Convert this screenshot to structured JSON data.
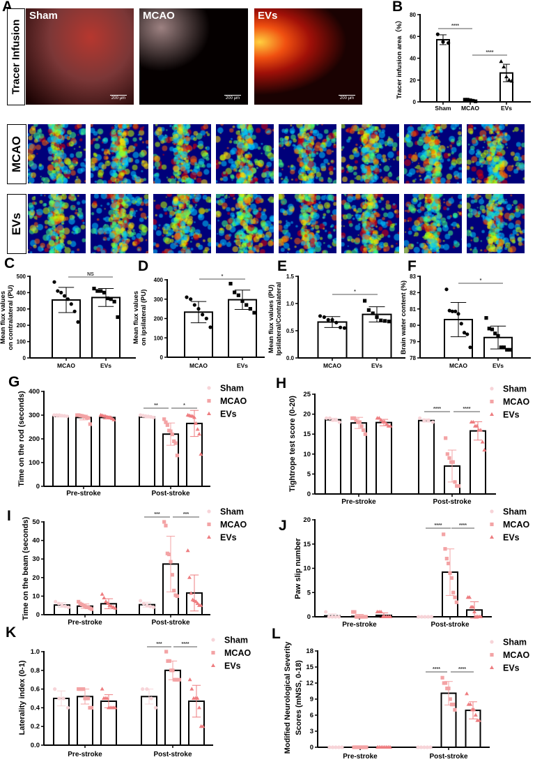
{
  "panel_a": {
    "letter": "A",
    "row_label": "Tracer Infusion",
    "images": [
      {
        "label": "Sham",
        "scale": "200 µm"
      },
      {
        "label": "MCAO",
        "scale": "200 µm"
      },
      {
        "label": "EVs",
        "scale": "200 µm"
      }
    ]
  },
  "laser_speckle": {
    "rows": [
      {
        "label": "MCAO",
        "count": 8
      },
      {
        "label": "EVs",
        "count": 8
      }
    ],
    "colormap": "jet"
  },
  "colors": {
    "Sham": "#f7d4d8",
    "MCAO": "#f3a3a5",
    "EVs": "#ee7d80",
    "black": "#000000"
  },
  "chart_data": [
    {
      "panel": "B",
      "type": "bar",
      "categories": [
        "Sham",
        "MCAO",
        "EVs"
      ],
      "ylabel": "Tracer infusion area（%）",
      "ylim": [
        0,
        80
      ],
      "yticks": [
        "0",
        "20",
        "40",
        "60",
        "80"
      ],
      "values": [
        57,
        1.5,
        26.5
      ],
      "sd": [
        4.5,
        0.8,
        8
      ],
      "markers": [
        "circle",
        "square",
        "triangle"
      ],
      "points": [
        [
          62,
          55,
          54
        ],
        [
          2,
          2,
          1.5,
          1,
          0.5
        ],
        [
          37,
          32,
          23,
          20,
          19
        ]
      ],
      "significance": [
        {
          "pair": [
            "Sham",
            "MCAO"
          ],
          "label": "****"
        },
        {
          "pair": [
            "MCAO",
            "EVs"
          ],
          "label": "****"
        }
      ]
    },
    {
      "panel": "C",
      "type": "bar",
      "categories": [
        "MCAO",
        "EVs"
      ],
      "ylabel": [
        "Mean flux values",
        "on contralateral (PU)"
      ],
      "ylim": [
        0,
        500
      ],
      "yticks": [
        "0",
        "100",
        "200",
        "300",
        "400",
        "500"
      ],
      "values": [
        355,
        370
      ],
      "sd": [
        77,
        55
      ],
      "markers": [
        "circle",
        "square"
      ],
      "points": [
        [
          465,
          410,
          400,
          380,
          360,
          330,
          285,
          220
        ],
        [
          425,
          410,
          410,
          400,
          365,
          360,
          345,
          250
        ]
      ],
      "significance": [
        {
          "pair": [
            "MCAO",
            "EVs"
          ],
          "label": "NS"
        }
      ]
    },
    {
      "panel": "D",
      "type": "bar",
      "categories": [
        "MCAO",
        "EVs"
      ],
      "ylabel": [
        "Mean flux values",
        "on ipsilateral (PU)"
      ],
      "ylim": [
        0,
        400
      ],
      "yticks": [
        "0",
        "100",
        "200",
        "300",
        "400"
      ],
      "values": [
        233,
        297
      ],
      "sd": [
        55,
        50
      ],
      "markers": [
        "circle",
        "square"
      ],
      "points": [
        [
          310,
          300,
          270,
          250,
          220,
          200,
          155
        ],
        [
          380,
          335,
          320,
          290,
          270,
          250,
          230
        ]
      ],
      "significance": [
        {
          "pair": [
            "MCAO",
            "EVs"
          ],
          "label": "*"
        }
      ]
    },
    {
      "panel": "E",
      "type": "bar",
      "categories": [
        "MCAO",
        "EVs"
      ],
      "ylabel": [
        "Mean flux values (PU)",
        "Ipsilateral/Contralateral"
      ],
      "ylim": [
        0,
        1.5
      ],
      "yticks": [
        "0.0",
        "0.5",
        "1.0",
        "1.5"
      ],
      "values": [
        0.66,
        0.8
      ],
      "sd": [
        0.1,
        0.14
      ],
      "markers": [
        "circle",
        "square"
      ],
      "points": [
        [
          0.77,
          0.75,
          0.7,
          0.7,
          0.65,
          0.56,
          0.55
        ],
        [
          1.05,
          0.88,
          0.82,
          0.75,
          0.69,
          0.68,
          0.67
        ]
      ],
      "significance": [
        {
          "pair": [
            "MCAO",
            "EVs"
          ],
          "label": "*"
        }
      ]
    },
    {
      "panel": "F",
      "type": "bar",
      "categories": [
        "MCAO",
        "EVs"
      ],
      "ylabel": "Brain water content (%)",
      "ylim": [
        78,
        83
      ],
      "yticks": [
        "78",
        "79",
        "80",
        "81",
        "82",
        "83"
      ],
      "values": [
        80.35,
        79.25
      ],
      "sd": [
        1.05,
        0.7
      ],
      "markers": [
        "circle",
        "square"
      ],
      "points": [
        [
          82.2,
          80.9,
          80.85,
          80.85,
          80.7,
          80.1,
          79.55,
          79.45,
          78.65
        ],
        [
          80.45,
          79.8,
          79.75,
          79.5,
          79.35,
          78.65,
          78.65,
          78.5,
          78.5
        ]
      ],
      "significance": [
        {
          "pair": [
            "MCAO",
            "EVs"
          ],
          "label": "*"
        }
      ]
    },
    {
      "panel": "G",
      "type": "grouped-bar",
      "categories": [
        "Pre-stroke",
        "Post-stroke"
      ],
      "series_names": [
        "Sham",
        "MCAO",
        "EVs"
      ],
      "ylabel": "Time on the rod (seconds)",
      "ylim": [
        0,
        400
      ],
      "yticks": [
        "0",
        "100",
        "200",
        "300",
        "400"
      ],
      "legend": "top-right",
      "values": [
        [
          295,
          290,
          290
        ],
        [
          292,
          220,
          265
        ]
      ],
      "sd": [
        [
          3,
          10,
          6
        ],
        [
          4,
          47,
          55
        ]
      ],
      "points": [
        [
          [
            300,
            300,
            300,
            298,
            297,
            295
          ],
          [
            300,
            300,
            298,
            297,
            295,
            293,
            290,
            288,
            262
          ],
          [
            300,
            298,
            296,
            295,
            292,
            290,
            288,
            285,
            280
          ]
        ],
        [
          [
            300,
            298,
            296,
            295,
            293,
            290
          ],
          [
            283,
            270,
            258,
            235,
            232,
            219,
            190,
            182,
            130
          ],
          [
            300,
            298,
            296,
            295,
            290,
            265,
            240,
            220,
            135
          ]
        ]
      ],
      "significance": [
        {
          "pair": [
            "Sham",
            "MCAO"
          ],
          "label": "**"
        },
        {
          "pair": [
            "MCAO",
            "EVs"
          ],
          "label": "*"
        }
      ]
    },
    {
      "panel": "H",
      "type": "grouped-bar",
      "categories": [
        "Pre-stroke",
        "Post-stroke"
      ],
      "series_names": [
        "Sham",
        "MCAO",
        "EVs"
      ],
      "ylabel": "Tightrope test score (0-20)",
      "ylim": [
        0,
        25
      ],
      "yticks": [
        "0",
        "5",
        "10",
        "15",
        "20",
        "25"
      ],
      "legend": "top-right",
      "values": [
        [
          18.6,
          17.8,
          17.9
        ],
        [
          18.4,
          7.0,
          15.8
        ]
      ],
      "sd": [
        [
          0.4,
          1.4,
          0.8
        ],
        [
          0.4,
          4,
          2.3
        ]
      ],
      "points": [
        [
          [
            19,
            19,
            18.5,
            18.5,
            18
          ],
          [
            19,
            19,
            18.5,
            18,
            18,
            17,
            16,
            15
          ],
          [
            19,
            19,
            18.5,
            18,
            18,
            17.5,
            17,
            17
          ]
        ],
        [
          [
            19,
            18.5,
            18.5,
            18
          ],
          [
            14,
            10,
            9,
            8,
            8,
            3,
            2,
            2
          ],
          [
            18,
            18,
            17,
            17,
            16,
            16,
            13,
            11
          ]
        ]
      ],
      "significance": [
        {
          "pair": [
            "Sham",
            "MCAO"
          ],
          "label": "****"
        },
        {
          "pair": [
            "MCAO",
            "EVs"
          ],
          "label": "****"
        }
      ]
    },
    {
      "panel": "I",
      "type": "grouped-bar",
      "categories": [
        "Pre-stroke",
        "Post-stroke"
      ],
      "series_names": [
        "Sham",
        "MCAO",
        "EVs"
      ],
      "ylabel": "Time on the beam (seconds)",
      "ylim": [
        0,
        50
      ],
      "yticks": [
        "0",
        "10",
        "20",
        "30",
        "40",
        "50"
      ],
      "legend": "top-right",
      "values": [
        [
          5.2,
          4.6,
          5.9
        ],
        [
          5.4,
          27.3,
          11.7
        ]
      ],
      "sd": [
        [
          1.2,
          1.2,
          2.7
        ],
        [
          1.3,
          15,
          9.7
        ]
      ],
      "points": [
        [
          [
            7,
            6,
            5,
            4.5,
            4
          ],
          [
            7,
            6,
            5.5,
            5,
            4.5,
            4,
            4,
            3.5,
            3
          ],
          [
            11,
            9,
            7,
            6,
            5,
            4.5,
            4,
            3.5
          ]
        ],
        [
          [
            7.5,
            6,
            5,
            4.5,
            4
          ],
          [
            50,
            48,
            33,
            32.5,
            28.5,
            21.5,
            13,
            10.5,
            10
          ],
          [
            34.5,
            20,
            11.5,
            8,
            7.5,
            7,
            6,
            5,
            5
          ]
        ]
      ],
      "significance": [
        {
          "pair": [
            "Sham",
            "MCAO"
          ],
          "label": "***"
        },
        {
          "pair": [
            "MCAO",
            "EVs"
          ],
          "label": "***"
        }
      ]
    },
    {
      "panel": "J",
      "type": "grouped-bar",
      "categories": [
        "Pre-stroke",
        "Post-stroke"
      ],
      "series_names": [
        "Sham",
        "MCAO",
        "EVs"
      ],
      "ylabel": "Paw slip number",
      "ylim": [
        0,
        20
      ],
      "yticks": [
        "0",
        "5",
        "10",
        "15",
        "20"
      ],
      "legend": "top-right",
      "values": [
        [
          0.2,
          0.1,
          0.3
        ],
        [
          0,
          9.2,
          1.4
        ]
      ],
      "sd": [
        [
          0.4,
          0.4,
          0.5
        ],
        [
          0,
          4.8,
          1.7
        ]
      ],
      "points": [
        [
          [
            1,
            0,
            0,
            0,
            0
          ],
          [
            1,
            1,
            0,
            0,
            0,
            0,
            0,
            0,
            0
          ],
          [
            1,
            1,
            1,
            0,
            0,
            0,
            0,
            0
          ]
        ],
        [
          [
            0,
            0,
            0,
            0,
            0
          ],
          [
            17,
            14,
            12,
            11,
            9,
            8,
            5,
            4,
            3
          ],
          [
            4,
            4,
            2,
            2,
            1,
            0,
            0,
            0,
            0
          ]
        ]
      ],
      "significance": [
        {
          "pair": [
            "Sham",
            "MCAO"
          ],
          "label": "****"
        },
        {
          "pair": [
            "MCAO",
            "EVs"
          ],
          "label": "****"
        }
      ]
    },
    {
      "panel": "K",
      "type": "grouped-bar",
      "categories": [
        "Pre-stroke",
        "Post-stroke"
      ],
      "series_names": [
        "Sham",
        "MCAO",
        "EVs"
      ],
      "ylabel": "Laterality index (0-1)",
      "ylim": [
        0,
        1
      ],
      "yticks": [
        "0.0",
        "0.2",
        "0.4",
        "0.6",
        "0.8",
        "1.0"
      ],
      "legend": "top-right",
      "values": [
        [
          0.5,
          0.52,
          0.47
        ],
        [
          0.52,
          0.8,
          0.47
        ]
      ],
      "sd": [
        [
          0.08,
          0.08,
          0.07
        ],
        [
          0.08,
          0.1,
          0.17
        ]
      ],
      "points": [
        [
          [
            0.6,
            0.5,
            0.5,
            0.4
          ],
          [
            0.6,
            0.6,
            0.6,
            0.6,
            0.5,
            0.5,
            0.5,
            0.4,
            0.4
          ],
          [
            0.6,
            0.5,
            0.5,
            0.5,
            0.4,
            0.4,
            0.4,
            0.4,
            0.4
          ]
        ],
        [
          [
            0.6,
            0.6,
            0.5,
            0.4
          ],
          [
            1.0,
            0.9,
            0.9,
            0.8,
            0.8,
            0.7,
            0.7,
            0.7,
            0.7
          ],
          [
            0.7,
            0.6,
            0.5,
            0.5,
            0.5,
            0.4,
            0.2,
            0.2
          ]
        ]
      ],
      "significance": [
        {
          "pair": [
            "Sham",
            "MCAO"
          ],
          "label": "***"
        },
        {
          "pair": [
            "MCAO",
            "EVs"
          ],
          "label": "****"
        }
      ]
    },
    {
      "panel": "L",
      "type": "grouped-bar",
      "categories": [
        "Pre-stroke",
        "Post-stroke"
      ],
      "series_names": [
        "Sham",
        "MCAO",
        "EVs"
      ],
      "ylabel": [
        "Modified Neurological Severity",
        "Scores (mNSS, 0-18)"
      ],
      "ylim": [
        0,
        18
      ],
      "yticks": [
        "0",
        "3",
        "6",
        "9",
        "12",
        "15",
        "18"
      ],
      "legend": "top-right",
      "values": [
        [
          0,
          0,
          0
        ],
        [
          0,
          10.1,
          6.9
        ]
      ],
      "sd": [
        [
          0,
          0,
          0
        ],
        [
          0,
          2.2,
          1.6
        ]
      ],
      "points": [
        [
          [
            0,
            0,
            0,
            0,
            0
          ],
          [
            0,
            0,
            0,
            0,
            0,
            0,
            0,
            0,
            0
          ],
          [
            0,
            0,
            0,
            0,
            0,
            0,
            0,
            0
          ]
        ],
        [
          [
            0,
            0,
            0,
            0,
            0
          ],
          [
            13,
            12,
            12,
            11,
            11,
            9,
            8,
            8,
            7
          ],
          [
            10,
            8,
            8,
            7,
            7,
            6,
            5,
            5
          ]
        ]
      ],
      "significance": [
        {
          "pair": [
            "Sham",
            "MCAO"
          ],
          "label": "****"
        },
        {
          "pair": [
            "MCAO",
            "EVs"
          ],
          "label": "****"
        }
      ]
    }
  ]
}
